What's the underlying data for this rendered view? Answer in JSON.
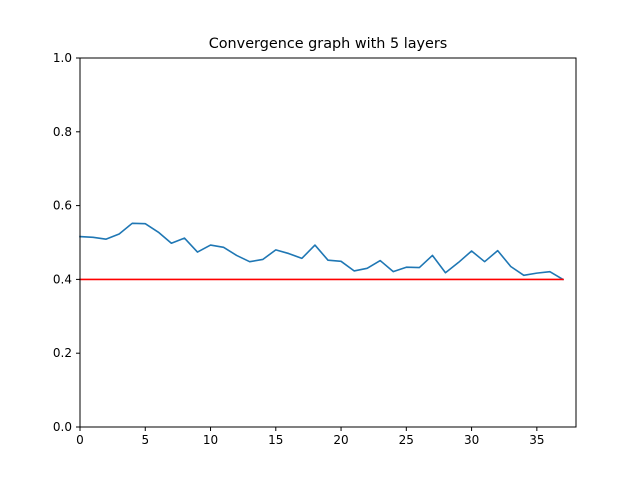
{
  "chart_data": {
    "type": "line",
    "title": "Convergence graph with 5 layers",
    "xlabel": "",
    "ylabel": "",
    "xlim": [
      0,
      38
    ],
    "ylim": [
      0.0,
      1.0
    ],
    "xticks": [
      0,
      5,
      10,
      15,
      20,
      25,
      30,
      35
    ],
    "yticks": [
      0.0,
      0.2,
      0.4,
      0.6,
      0.8,
      1.0
    ],
    "xtick_labels": [
      "0",
      "5",
      "10",
      "15",
      "20",
      "25",
      "30",
      "35"
    ],
    "ytick_labels": [
      "0.0",
      "0.2",
      "0.4",
      "0.6",
      "0.8",
      "1.0"
    ],
    "grid": false,
    "series": [
      {
        "color": "#1f77b4",
        "x": [
          0,
          1,
          2,
          3,
          4,
          5,
          6,
          7,
          8,
          9,
          10,
          11,
          12,
          13,
          14,
          15,
          16,
          17,
          18,
          19,
          20,
          21,
          22,
          23,
          24,
          25,
          26,
          27,
          28,
          29,
          30,
          31,
          32,
          33,
          34,
          35,
          36,
          37
        ],
        "y": [
          0.516,
          0.514,
          0.509,
          0.523,
          0.552,
          0.551,
          0.528,
          0.498,
          0.512,
          0.474,
          0.493,
          0.487,
          0.465,
          0.448,
          0.454,
          0.48,
          0.47,
          0.457,
          0.493,
          0.452,
          0.449,
          0.423,
          0.43,
          0.451,
          0.421,
          0.433,
          0.432,
          0.465,
          0.418,
          0.446,
          0.477,
          0.448,
          0.478,
          0.435,
          0.411,
          0.417,
          0.421,
          0.4
        ]
      },
      {
        "color": "#ff0000",
        "x": [
          0,
          37
        ],
        "y": [
          0.4,
          0.4
        ]
      }
    ]
  }
}
